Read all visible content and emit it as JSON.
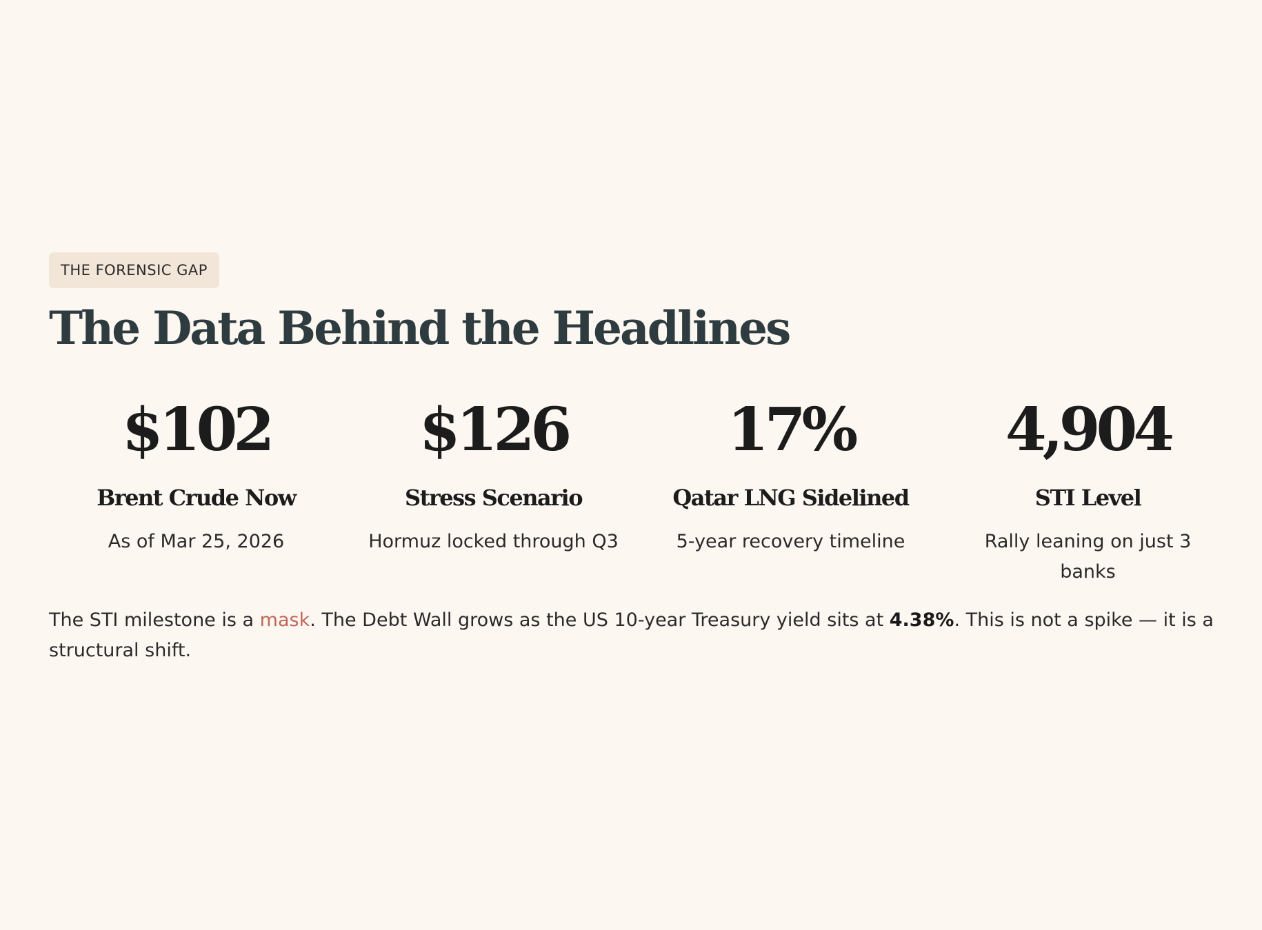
{
  "section": {
    "badge": "THE FORENSIC GAP",
    "title": "The Data Behind the Headlines"
  },
  "stats": [
    {
      "value": "$102",
      "label": "Brent Crude Now",
      "note": "As of Mar 25, 2026"
    },
    {
      "value": "$126",
      "label": "Stress Scenario",
      "note": "Hormuz locked through Q3"
    },
    {
      "value": "17%",
      "label": "Qatar LNG Sidelined",
      "note": "5-year recovery timeline"
    },
    {
      "value": "4,904",
      "label": "STI Level",
      "note": "Rally leaning on just 3 banks"
    }
  ],
  "summary": {
    "part1": "The STI milestone is a ",
    "highlight": "mask",
    "part2": ". The Debt Wall grows as the US 10-year Treasury yield sits at ",
    "yield": "4.38%",
    "part3": ". This is not a spike — it is a structural shift."
  },
  "colors": {
    "background": "#fdf7f1",
    "badge_bg": "#f1e6d8",
    "title": "#2e3c40",
    "accent": "#c0675a"
  }
}
